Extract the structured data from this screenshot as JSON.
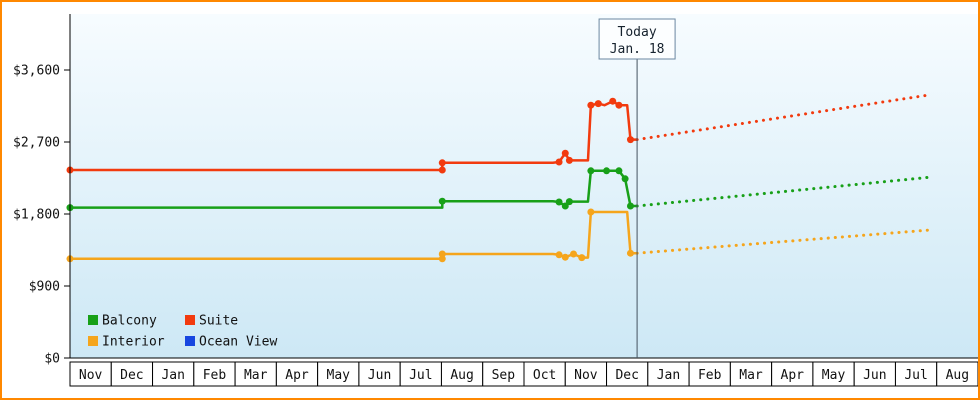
{
  "colors": {
    "balcony": "#18a018",
    "suite": "#f23a0e",
    "interior": "#f5a51c",
    "ocean_view": "#1746e0",
    "frame_border": "#ff8800",
    "bg_top": "#f7fcff",
    "bg_bottom": "#cde8f5",
    "axis": "#000000",
    "month_box_fill": "#ffffff",
    "month_box_border": "#000000",
    "today_line": "#44525f",
    "today_box_border": "#6a87a0",
    "today_box_fill": "#fcfeff"
  },
  "legend": {
    "items": [
      {
        "label": "Balcony",
        "color_key": "balcony"
      },
      {
        "label": "Suite",
        "color_key": "suite"
      },
      {
        "label": "Interior",
        "color_key": "interior"
      },
      {
        "label": "Ocean View",
        "color_key": "ocean_view"
      }
    ]
  },
  "chart_data": {
    "type": "line",
    "title": "",
    "x_months": [
      "Nov",
      "Dec",
      "Jan",
      "Feb",
      "Mar",
      "Apr",
      "May",
      "Jun",
      "Jul",
      "Aug",
      "Sep",
      "Oct",
      "Nov",
      "Dec",
      "Jan",
      "Feb",
      "Mar",
      "Apr",
      "May",
      "Jun",
      "Jul",
      "Aug"
    ],
    "ylim": [
      0,
      3600
    ],
    "y_ticks": [
      {
        "value": 0,
        "label": "$0"
      },
      {
        "value": 900,
        "label": "$900"
      },
      {
        "value": 1800,
        "label": "$1,800"
      },
      {
        "value": 2700,
        "label": "$2,700"
      },
      {
        "value": 3600,
        "label": "$3,600"
      }
    ],
    "today": {
      "month_index": 13.74,
      "line1": "Today",
      "line2": "Jan. 18"
    },
    "series": [
      {
        "name": "Interior",
        "color_key": "interior",
        "points": [
          [
            0,
            1240
          ],
          [
            9.02,
            1240
          ],
          [
            9.02,
            1300
          ],
          [
            11.7,
            1300
          ],
          [
            11.85,
            1290
          ],
          [
            12.0,
            1260
          ],
          [
            12.2,
            1300
          ],
          [
            12.4,
            1255
          ],
          [
            12.55,
            1255
          ],
          [
            12.62,
            1825
          ],
          [
            13.5,
            1825
          ],
          [
            13.58,
            1310
          ],
          [
            13.74,
            1310
          ]
        ],
        "markers": [
          [
            0,
            1240
          ],
          [
            9.02,
            1240
          ],
          [
            9.02,
            1300
          ],
          [
            11.85,
            1290
          ],
          [
            12.0,
            1260
          ],
          [
            12.2,
            1300
          ],
          [
            12.4,
            1255
          ],
          [
            12.62,
            1825
          ],
          [
            13.58,
            1310
          ]
        ],
        "projection": [
          [
            13.74,
            1310
          ],
          [
            20.84,
            1600
          ]
        ]
      },
      {
        "name": "Balcony",
        "color_key": "balcony",
        "points": [
          [
            0,
            1880
          ],
          [
            9.02,
            1880
          ],
          [
            9.02,
            1960
          ],
          [
            11.7,
            1960
          ],
          [
            11.85,
            1950
          ],
          [
            12.0,
            1900
          ],
          [
            12.1,
            1955
          ],
          [
            12.55,
            1955
          ],
          [
            12.62,
            2340
          ],
          [
            13.0,
            2340
          ],
          [
            13.3,
            2340
          ],
          [
            13.45,
            2240
          ],
          [
            13.58,
            1900
          ],
          [
            13.74,
            1900
          ]
        ],
        "markers": [
          [
            0,
            1880
          ],
          [
            9.02,
            1960
          ],
          [
            11.85,
            1950
          ],
          [
            12.0,
            1900
          ],
          [
            12.1,
            1955
          ],
          [
            12.62,
            2340
          ],
          [
            13.0,
            2340
          ],
          [
            13.3,
            2340
          ],
          [
            13.45,
            2240
          ],
          [
            13.58,
            1900
          ]
        ],
        "projection": [
          [
            13.74,
            1900
          ],
          [
            20.84,
            2260
          ]
        ]
      },
      {
        "name": "Suite",
        "color_key": "suite",
        "points": [
          [
            0,
            2350
          ],
          [
            9.02,
            2350
          ],
          [
            9.02,
            2440
          ],
          [
            11.7,
            2440
          ],
          [
            11.85,
            2450
          ],
          [
            12.0,
            2560
          ],
          [
            12.1,
            2470
          ],
          [
            12.55,
            2470
          ],
          [
            12.62,
            3160
          ],
          [
            12.8,
            3180
          ],
          [
            12.95,
            3160
          ],
          [
            13.15,
            3210
          ],
          [
            13.3,
            3160
          ],
          [
            13.5,
            3160
          ],
          [
            13.58,
            2730
          ],
          [
            13.74,
            2730
          ]
        ],
        "markers": [
          [
            0,
            2350
          ],
          [
            9.02,
            2350
          ],
          [
            9.02,
            2440
          ],
          [
            11.85,
            2450
          ],
          [
            12.0,
            2560
          ],
          [
            12.1,
            2470
          ],
          [
            12.62,
            3160
          ],
          [
            12.8,
            3180
          ],
          [
            13.15,
            3210
          ],
          [
            13.3,
            3160
          ],
          [
            13.58,
            2730
          ]
        ],
        "projection": [
          [
            13.74,
            2730
          ],
          [
            20.84,
            3290
          ]
        ]
      },
      {
        "name": "Ocean View",
        "color_key": "ocean_view",
        "points": [],
        "markers": [],
        "projection": null
      }
    ]
  }
}
